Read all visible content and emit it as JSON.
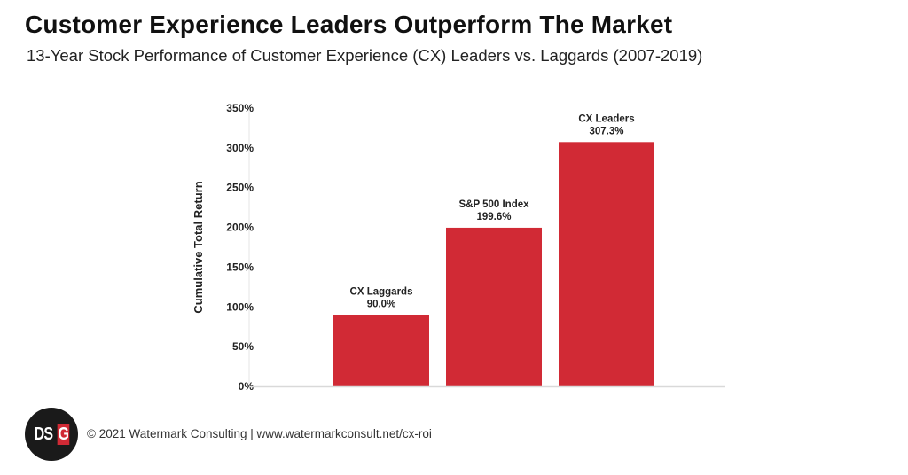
{
  "header": {
    "title": "Customer Experience Leaders Outperform The Market",
    "subtitle": "13-Year Stock Performance of Customer Experience (CX) Leaders vs. Laggards (2007-2019)"
  },
  "chart_data": {
    "type": "bar",
    "title": "Customer Experience Leaders Outperform The Market",
    "subtitle": "13-Year Stock Performance of Customer Experience (CX) Leaders vs. Laggards (2007-2019)",
    "categories": [
      "CX Laggards",
      "S&P 500 Index",
      "CX Leaders"
    ],
    "values": [
      90.0,
      199.6,
      307.3
    ],
    "value_labels": [
      "90.0%",
      "199.6%",
      "307.3%"
    ],
    "xlabel": "",
    "ylabel": "Cumulative Total Return",
    "ylim": [
      0,
      350
    ],
    "yticks": [
      0,
      50,
      100,
      150,
      200,
      250,
      300,
      350
    ],
    "ytick_labels": [
      "0%",
      "50%",
      "100%",
      "150%",
      "200%",
      "250%",
      "300%",
      "350%"
    ],
    "grid": false,
    "legend": "none",
    "bar_color": "#d12a35"
  },
  "footer": {
    "logo_text": "DSG",
    "credit": "© 2021 Watermark Consulting | www.watermarkconsult.net/cx-roi"
  }
}
